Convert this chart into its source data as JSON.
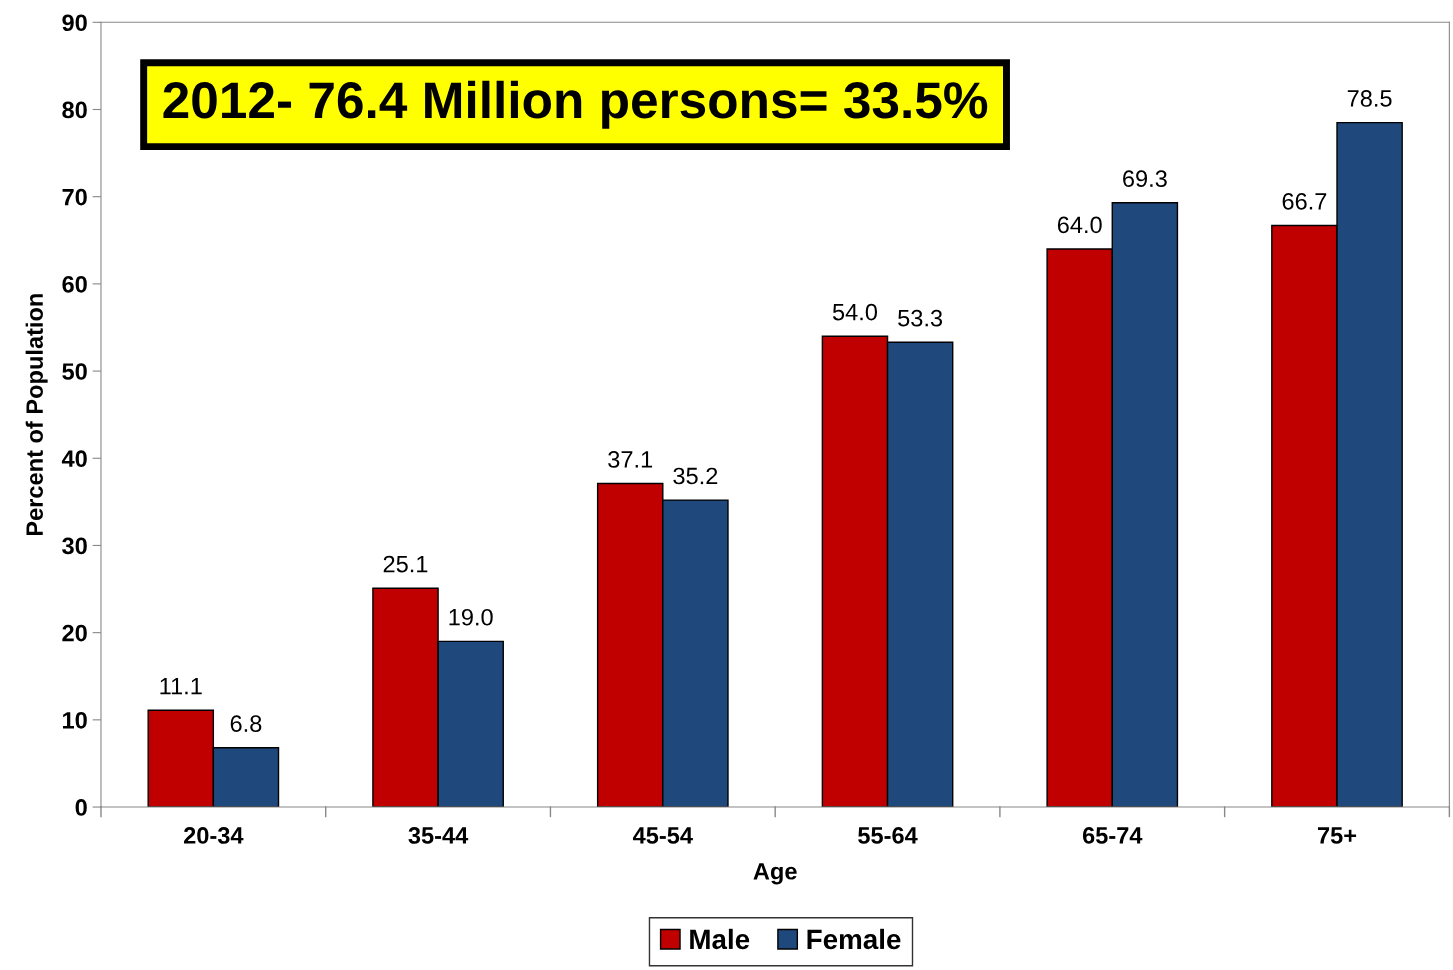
{
  "chart_data": {
    "type": "bar",
    "xlabel": "Age",
    "ylabel": "Percent of Population",
    "categories": [
      "20-34",
      "35-44",
      "45-54",
      "55-64",
      "65-74",
      "75+"
    ],
    "series": [
      {
        "name": "Male",
        "color": "#c00000",
        "values": [
          11.1,
          25.1,
          37.1,
          54.0,
          64.0,
          66.7
        ]
      },
      {
        "name": "Female",
        "color": "#1f497d",
        "values": [
          6.8,
          19.0,
          35.2,
          53.3,
          69.3,
          78.5
        ]
      }
    ],
    "value_labels": [
      [
        "11.1",
        "25.1",
        "37.1",
        "54.0",
        "64.0",
        "66.7"
      ],
      [
        "6.8",
        "19.0",
        "35.2",
        "53.3",
        "69.3",
        "78.5"
      ]
    ],
    "ylim": [
      0,
      90
    ],
    "yticks": [
      0,
      10,
      20,
      30,
      40,
      50,
      60,
      70,
      80,
      90
    ],
    "annotations": [
      "2012- 76.4 Million persons= 33.5%"
    ],
    "grid": false,
    "legend": "bottom"
  }
}
